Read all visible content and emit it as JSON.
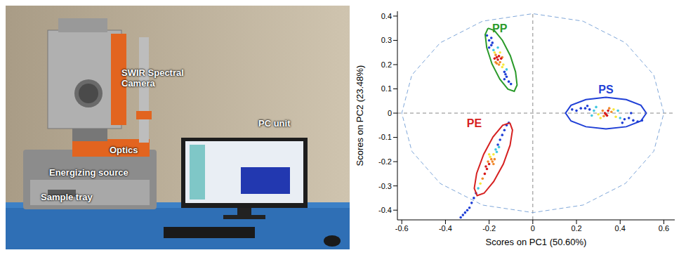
{
  "image": {
    "labels": [
      "SWIR Spectral Camera",
      "Optics",
      "Energizing source",
      "Sample tray",
      "PC unit"
    ]
  },
  "chart_data": {
    "type": "scatter",
    "x_label": "Scores on PC1 (50.60%)",
    "y_label": "Scores on PC2 (23.48%)",
    "xlim": [
      -0.62,
      0.65
    ],
    "ylim": [
      -0.44,
      0.42
    ],
    "xticks": [
      -0.6,
      -0.4,
      -0.2,
      0,
      0.2,
      0.4,
      0.6
    ],
    "yticks": [
      -0.4,
      -0.3,
      -0.2,
      -0.1,
      0,
      0.1,
      0.2,
      0.3,
      0.4
    ],
    "color": "#1f3fd6",
    "marker": "circle",
    "series": [
      {
        "name": "PP",
        "color": "#2a9a2a",
        "x": [
          -0.16,
          -0.15,
          -0.17,
          -0.14,
          -0.18,
          -0.13,
          -0.19,
          -0.12,
          -0.2,
          -0.11,
          -0.155,
          -0.165,
          -0.145,
          -0.175,
          -0.135,
          -0.185,
          -0.125,
          -0.15,
          -0.17,
          -0.14,
          -0.19,
          -0.1,
          -0.21,
          -0.16,
          -0.13,
          -0.2,
          -0.12,
          -0.165,
          -0.155,
          -0.175
        ],
        "y": [
          0.22,
          0.21,
          0.24,
          0.19,
          0.26,
          0.17,
          0.28,
          0.15,
          0.3,
          0.13,
          0.235,
          0.205,
          0.225,
          0.25,
          0.2,
          0.29,
          0.16,
          0.25,
          0.21,
          0.23,
          0.31,
          0.12,
          0.32,
          0.27,
          0.14,
          0.27,
          0.18,
          0.23,
          0.2,
          0.225
        ],
        "ellipse": {
          "x": [
            -0.205,
            -0.176,
            -0.139,
            -0.103,
            -0.079,
            -0.072,
            -0.085,
            -0.114,
            -0.151,
            -0.187,
            -0.211,
            -0.218,
            -0.205
          ],
          "y": [
            0.35,
            0.341,
            0.3,
            0.237,
            0.17,
            0.116,
            0.09,
            0.099,
            0.14,
            0.203,
            0.27,
            0.324,
            0.35
          ]
        }
      },
      {
        "name": "PS",
        "color": "#1f3fd6",
        "x": [
          0.33,
          0.34,
          0.32,
          0.36,
          0.3,
          0.38,
          0.28,
          0.4,
          0.26,
          0.42,
          0.24,
          0.44,
          0.22,
          0.46,
          0.2,
          0.48,
          0.35,
          0.31,
          0.37,
          0.29,
          0.39,
          0.27,
          0.41,
          0.25,
          0.5,
          0.18,
          0.335,
          0.345,
          0.325,
          0.45
        ],
        "y": [
          0,
          -0.01,
          0.01,
          0.005,
          -0.005,
          -0.015,
          0.01,
          -0.02,
          0.015,
          -0.025,
          0.02,
          -0.02,
          0.02,
          -0.03,
          0.01,
          -0.035,
          0.02,
          -0.02,
          0.015,
          0.025,
          0.01,
          -0.01,
          -0.04,
          0.03,
          -0.03,
          0.015,
          -0.005,
          0.01,
          -0.012,
          0
        ],
        "ellipse": {
          "x": [
            0.52,
            0.495,
            0.428,
            0.335,
            0.243,
            0.175,
            0.15,
            0.175,
            0.243,
            0.335,
            0.428,
            0.495,
            0.52
          ],
          "y": [
            0,
            0.0325,
            0.056,
            0.065,
            0.056,
            0.0325,
            0,
            -0.0325,
            -0.056,
            -0.065,
            -0.056,
            -0.0325,
            0
          ]
        }
      },
      {
        "name": "PE",
        "color": "#d62020",
        "x": [
          -0.19,
          -0.18,
          -0.2,
          -0.17,
          -0.21,
          -0.16,
          -0.22,
          -0.15,
          -0.23,
          -0.14,
          -0.24,
          -0.13,
          -0.25,
          -0.12,
          -0.185,
          -0.195,
          -0.175,
          -0.205,
          -0.165,
          -0.215,
          -0.2,
          -0.18,
          -0.26,
          -0.27,
          -0.28,
          -0.29,
          -0.3,
          -0.31,
          -0.32,
          -0.33,
          -0.11,
          -0.155
        ],
        "y": [
          -0.19,
          -0.17,
          -0.21,
          -0.15,
          -0.23,
          -0.13,
          -0.25,
          -0.11,
          -0.27,
          -0.09,
          -0.29,
          -0.07,
          -0.31,
          -0.05,
          -0.2,
          -0.18,
          -0.19,
          -0.2,
          -0.16,
          -0.22,
          -0.17,
          -0.21,
          -0.33,
          -0.35,
          -0.37,
          -0.39,
          -0.4,
          -0.41,
          -0.42,
          -0.43,
          -0.04,
          -0.14
        ],
        "ellipse": {
          "x": [
            -0.105,
            -0.093,
            -0.104,
            -0.135,
            -0.179,
            -0.223,
            -0.255,
            -0.268,
            -0.257,
            -0.225,
            -0.182,
            -0.138,
            -0.105
          ],
          "y": [
            -0.04,
            -0.07,
            -0.132,
            -0.21,
            -0.282,
            -0.33,
            -0.34,
            -0.31,
            -0.248,
            -0.17,
            -0.098,
            -0.05,
            -0.04
          ]
        }
      }
    ],
    "confidence_ellipse": {
      "color": "#7fa7d9",
      "line_style": "dashed",
      "x": [
        0.6,
        0.554,
        0.424,
        0.23,
        0,
        -0.23,
        -0.424,
        -0.554,
        -0.6,
        -0.554,
        -0.424,
        -0.23,
        0,
        0.23,
        0.424,
        0.554,
        0.6
      ],
      "y": [
        0,
        0.157,
        0.29,
        0.379,
        0.41,
        0.379,
        0.29,
        0.157,
        0,
        -0.157,
        -0.29,
        -0.379,
        -0.41,
        -0.379,
        -0.29,
        -0.157,
        0
      ]
    },
    "reference_lines": [
      {
        "axis": "x",
        "value": 0
      },
      {
        "axis": "y",
        "value": 0
      }
    ]
  }
}
